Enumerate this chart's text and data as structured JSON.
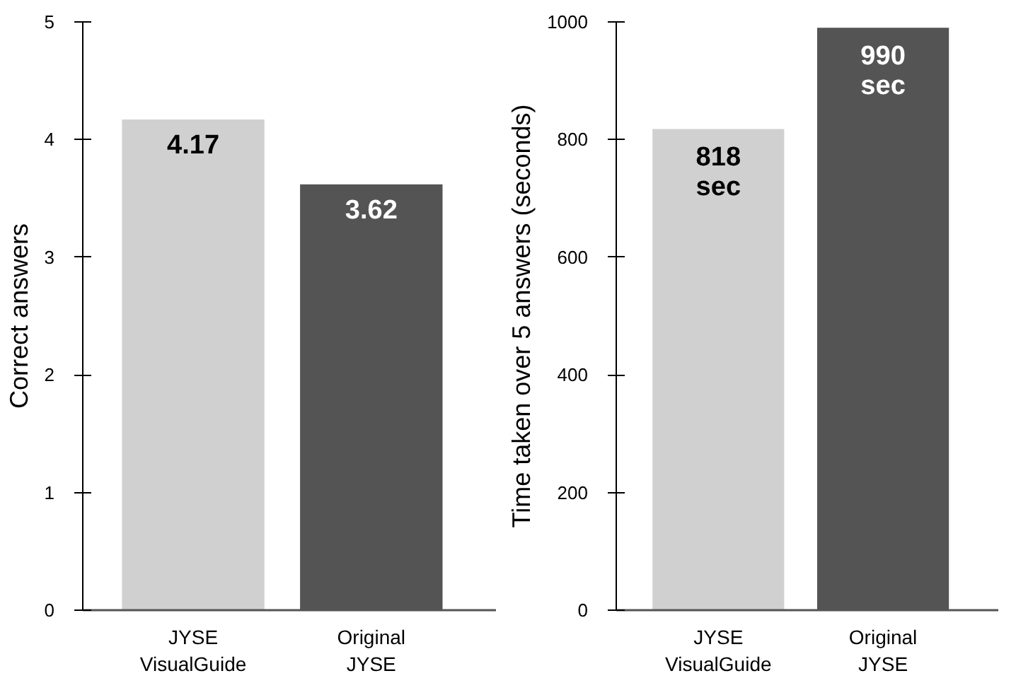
{
  "chart_data": [
    {
      "type": "bar",
      "categories": [
        "JYSE\nVisualGuide",
        "Original\nJYSE"
      ],
      "ylabel": "Correct answers",
      "colors": [
        "#d0d0d0",
        "#545454"
      ],
      "values": [
        4.17,
        3.62
      ],
      "data_labels": true,
      "ylim": [
        0,
        5
      ],
      "yticks": [
        0,
        1,
        2,
        3,
        4,
        5
      ],
      "grid": false
    },
    {
      "type": "bar",
      "categories": [
        "JYSE\nVisualGuide",
        "Original\nJYSE"
      ],
      "ylabel": "Time taken over 5 answers (seconds)",
      "colors": [
        "#d0d0d0",
        "#545454"
      ],
      "values": [
        818,
        990
      ],
      "value_labels": [
        "818\nsec",
        "990\nsec"
      ],
      "ylim": [
        0,
        1000
      ],
      "yticks": [
        0,
        200,
        400,
        600,
        800,
        1000
      ],
      "grid": false
    }
  ]
}
